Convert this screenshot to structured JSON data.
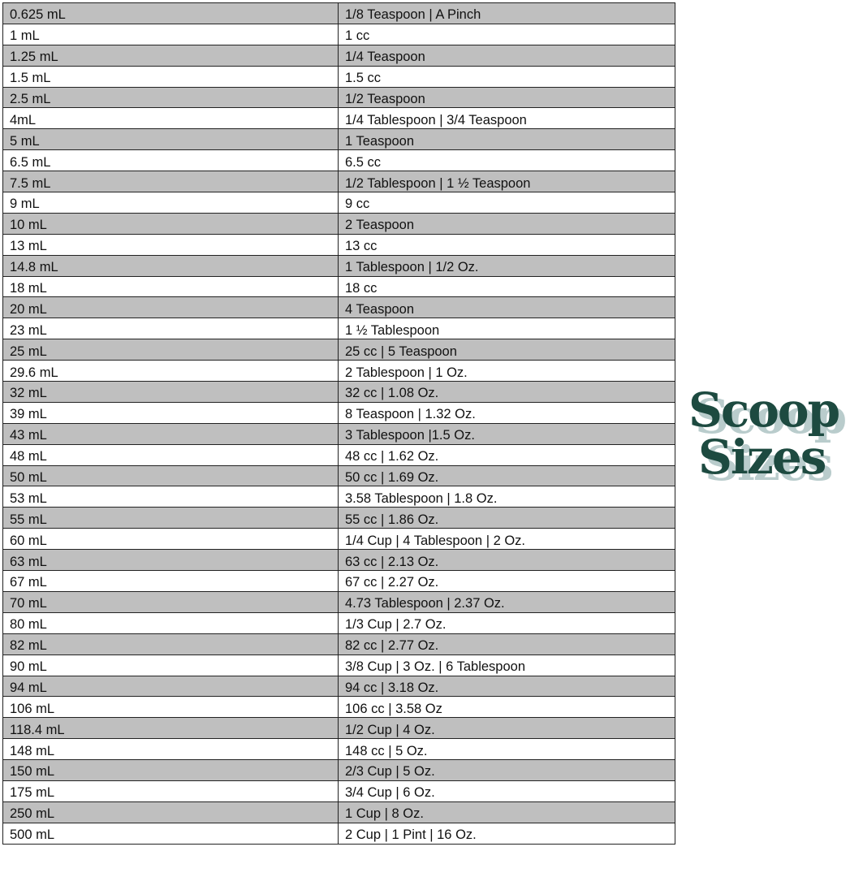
{
  "rows": [
    [
      "0.625 mL",
      "1/8 Teaspoon | A Pinch"
    ],
    [
      "1 mL",
      "1 cc"
    ],
    [
      "1.25 mL",
      "1/4 Teaspoon"
    ],
    [
      "1.5 mL",
      "1.5 cc"
    ],
    [
      "2.5 mL",
      "1/2 Teaspoon"
    ],
    [
      "4mL",
      "1/4 Tablespoon | 3/4 Teaspoon"
    ],
    [
      "5 mL",
      "1 Teaspoon"
    ],
    [
      "6.5 mL",
      "6.5 cc"
    ],
    [
      "7.5 mL",
      "1/2 Tablespoon | 1 ½ Teaspoon"
    ],
    [
      "9 mL",
      "9 cc"
    ],
    [
      "10 mL",
      "2 Teaspoon"
    ],
    [
      "13 mL",
      "13 cc"
    ],
    [
      "14.8 mL",
      "1 Tablespoon | 1/2 Oz."
    ],
    [
      "18 mL",
      "18 cc"
    ],
    [
      "20 mL",
      "4 Teaspoon"
    ],
    [
      "23 mL",
      "1 ½ Tablespoon"
    ],
    [
      "25 mL",
      "25 cc | 5 Teaspoon"
    ],
    [
      "29.6 mL",
      "2 Tablespoon | 1 Oz."
    ],
    [
      "32 mL",
      "32 cc | 1.08 Oz."
    ],
    [
      "39 mL",
      "8 Teaspoon | 1.32 Oz."
    ],
    [
      "43 mL",
      "3 Tablespoon |1.5 Oz."
    ],
    [
      "48 mL",
      "48 cc | 1.62 Oz."
    ],
    [
      "50 mL",
      "50 cc | 1.69 Oz."
    ],
    [
      "53 mL",
      "3.58 Tablespoon | 1.8 Oz."
    ],
    [
      "55 mL",
      "55 cc | 1.86 Oz."
    ],
    [
      "60 mL",
      "1/4 Cup | 4 Tablespoon | 2 Oz."
    ],
    [
      "63 mL",
      "63 cc | 2.13 Oz."
    ],
    [
      "67 mL",
      "67 cc | 2.27 Oz."
    ],
    [
      "70 mL",
      "4.73 Tablespoon | 2.37 Oz."
    ],
    [
      "80 mL",
      "1/3 Cup | 2.7 Oz."
    ],
    [
      "82 mL",
      "82 cc | 2.77 Oz."
    ],
    [
      "90 mL",
      "3/8 Cup | 3 Oz. | 6 Tablespoon"
    ],
    [
      "94 mL",
      "94 cc | 3.18 Oz."
    ],
    [
      "106 mL",
      "106 cc | 3.58 Oz"
    ],
    [
      "118.4 mL",
      "1/2 Cup | 4 Oz."
    ],
    [
      "148 mL",
      "148 cc | 5 Oz."
    ],
    [
      "150 mL",
      "2/3 Cup | 5 Oz."
    ],
    [
      "175 mL",
      "3/4 Cup | 6 Oz."
    ],
    [
      "250 mL",
      "1 Cup | 8 Oz."
    ],
    [
      "500 mL",
      "2 Cup | 1 Pint | 16 Oz."
    ]
  ],
  "logo": {
    "line1": "Scoop",
    "line2": "Sizes"
  },
  "colors": {
    "stripe": "#bfbfbf",
    "logo": "#1d4a40",
    "logo_shadow": "#b9cccc"
  }
}
